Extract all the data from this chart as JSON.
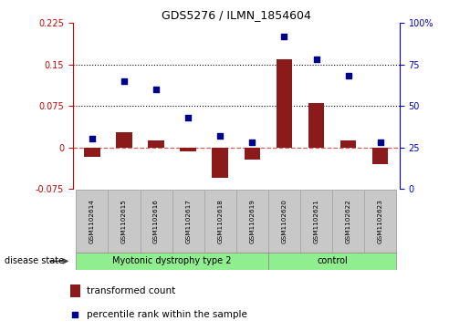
{
  "title": "GDS5276 / ILMN_1854604",
  "samples": [
    "GSM1102614",
    "GSM1102615",
    "GSM1102616",
    "GSM1102617",
    "GSM1102618",
    "GSM1102619",
    "GSM1102620",
    "GSM1102621",
    "GSM1102622",
    "GSM1102623"
  ],
  "transformed_count": [
    -0.018,
    0.028,
    0.013,
    -0.008,
    -0.055,
    -0.022,
    0.16,
    0.08,
    0.013,
    -0.03
  ],
  "percentile_rank": [
    30,
    65,
    60,
    43,
    32,
    28,
    92,
    78,
    68,
    28
  ],
  "groups": [
    {
      "label": "Myotonic dystrophy type 2",
      "start": 0,
      "end": 6
    },
    {
      "label": "control",
      "start": 6,
      "end": 10
    }
  ],
  "ylim_left": [
    -0.075,
    0.225
  ],
  "ylim_right": [
    0,
    100
  ],
  "yticks_left": [
    -0.075,
    0,
    0.075,
    0.15,
    0.225
  ],
  "yticks_right": [
    0,
    25,
    50,
    75,
    100
  ],
  "ytick_labels_left": [
    "-0.075",
    "0",
    "0.075",
    "0.15",
    "0.225"
  ],
  "ytick_labels_right": [
    "0",
    "25",
    "50",
    "75",
    "100%"
  ],
  "hlines": [
    0.075,
    0.15
  ],
  "bar_color": "#8B1A1A",
  "dot_color": "#00008B",
  "zero_line_color": "#cc3333",
  "box_facecolor": "#c8c8c8",
  "box_edgecolor": "#aaaaaa",
  "group_fill": "#90EE90",
  "group_edge": "#888888",
  "left_axis_color": "#cc0000",
  "right_axis_color": "#0000cc",
  "disease_state_label": "disease state",
  "legend_bar_label": "transformed count",
  "legend_dot_label": "percentile rank within the sample"
}
